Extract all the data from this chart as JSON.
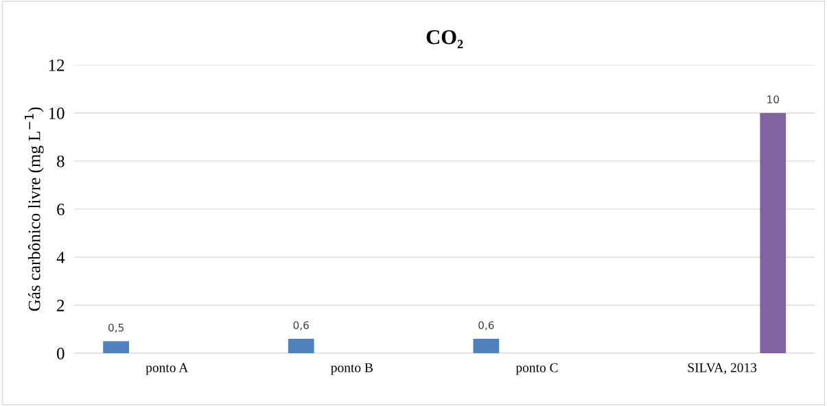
{
  "chart_data": {
    "type": "bar",
    "title": "CO₂",
    "ylabel": "Gás carbônico livre (mg L$^{−1}$)",
    "categories": [
      "ponto A",
      "ponto B",
      "ponto C",
      "SILVA, 2013"
    ],
    "series": [
      {
        "color": "#4f81bd",
        "values": [
          0.5,
          0.6,
          0.6,
          null
        ],
        "value_labels": [
          "0,5",
          "0,6",
          "0,6",
          null
        ]
      },
      {
        "color": "#8064a2",
        "values": [
          null,
          null,
          null,
          10
        ],
        "value_labels": [
          null,
          null,
          null,
          "10"
        ]
      }
    ],
    "ylim": [
      0,
      12
    ],
    "yticks": [
      0,
      2,
      4,
      6,
      8,
      10,
      12
    ],
    "grid": "y",
    "legend": false
  }
}
